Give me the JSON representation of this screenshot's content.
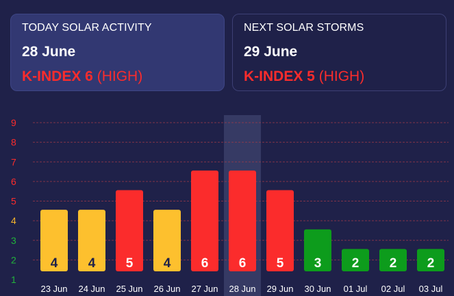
{
  "today": {
    "label": "TODAY SOLAR ACTIVITY",
    "date": "28 June",
    "kindex_label": "K-INDEX 6",
    "level": "(HIGH)",
    "color": "#fb2c2c"
  },
  "next": {
    "label": "NEXT SOLAR STORMS",
    "date": "29 June",
    "kindex_label": "K-INDEX 5",
    "level": "(HIGH)",
    "color": "#fb2c2c"
  },
  "chart_data": {
    "type": "bar",
    "categories": [
      "23 Jun",
      "24 Jun",
      "25 Jun",
      "26 Jun",
      "27 Jun",
      "28 Jun",
      "29 Jun",
      "30 Jun",
      "01 Jul",
      "02 Jul",
      "03 Jul"
    ],
    "values": [
      4,
      4,
      5,
      4,
      6,
      6,
      5,
      3,
      2,
      2,
      2
    ],
    "y_ticks": [
      "1",
      "2",
      "3",
      "4",
      "5",
      "6",
      "7",
      "8",
      "9"
    ],
    "ylim": [
      1,
      9
    ],
    "highlighted_category": "28 Jun",
    "grid": true,
    "colors": {
      "high": "#fb2c2c",
      "moderate": "#fdc02e",
      "low": "#0d9c1c",
      "highlight": "#363a64",
      "grid": "#a03a4a",
      "tick_low": "#21b43a",
      "tick_mid": "#f7b52b",
      "tick_high": "#fb2c2c",
      "bar_label_dark": "#1f2149",
      "bar_label_light": "#ffffff",
      "axis_label": "#ffffff"
    }
  }
}
